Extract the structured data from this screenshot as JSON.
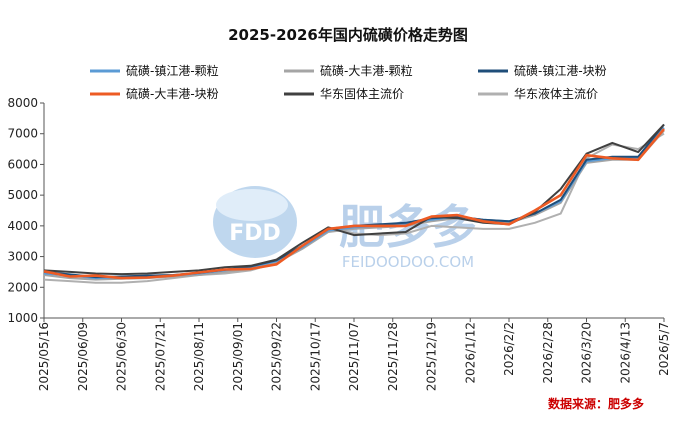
{
  "chart_data": {
    "type": "line",
    "title": "2025-2026年国内硫磺价格走势图",
    "source": "数据来源：肥多多",
    "watermark": {
      "logo_text": "FDD",
      "brand_cn": "肥多多",
      "domain_text": "FEIDOODOO.COM"
    },
    "ylim": [
      1000,
      8000
    ],
    "yticks": [
      1000,
      2000,
      3000,
      4000,
      5000,
      6000,
      7000,
      8000
    ],
    "x_tick_labels": [
      "2025/05/16",
      "2025/06/09",
      "2025/06/30",
      "2025/07/21",
      "2025/08/11",
      "2025/09/01",
      "2025/09/22",
      "2025/10/17",
      "2025/11/07",
      "2025/11/28",
      "2025/12/19",
      "2026/1/12",
      "2026/2/2",
      "2026/2/28",
      "2026/3/20",
      "2026/4/13",
      "2026/5/7"
    ],
    "legend_position": "top",
    "grid": false,
    "series": [
      {
        "name": "硫磺-镇江港-颗粒",
        "color": "#5b9bd5",
        "values": [
          2450,
          2380,
          2300,
          2320,
          2350,
          2380,
          2450,
          2550,
          2650,
          2850,
          3300,
          3850,
          3950,
          4000,
          4050,
          4200,
          4300,
          4200,
          4150,
          4400,
          4800,
          6100,
          6200,
          6200,
          7200
        ]
      },
      {
        "name": "硫磺-大丰港-颗粒",
        "color": "#a5a5a5",
        "values": [
          2400,
          2300,
          2250,
          2280,
          2300,
          2350,
          2400,
          2500,
          2600,
          2800,
          3250,
          3800,
          3900,
          3950,
          4000,
          4150,
          4250,
          4150,
          4100,
          4350,
          4750,
          6050,
          6150,
          6150,
          7100
        ]
      },
      {
        "name": "硫磺-镇江港-块粉",
        "color": "#1f4e79",
        "values": [
          2500,
          2420,
          2330,
          2350,
          2380,
          2400,
          2470,
          2570,
          2680,
          2880,
          3350,
          3900,
          4000,
          4050,
          4100,
          4250,
          4300,
          4200,
          4150,
          4400,
          4850,
          6150,
          6250,
          6250,
          7300
        ]
      },
      {
        "name": "硫磺-大丰港-块粉",
        "color": "#ed5b24",
        "values": [
          2520,
          2350,
          2380,
          2300,
          2320,
          2380,
          2480,
          2580,
          2600,
          2750,
          3350,
          3900,
          4000,
          4000,
          4000,
          4300,
          4350,
          4150,
          4050,
          4500,
          5000,
          6300,
          6200,
          6150,
          7150
        ]
      },
      {
        "name": "华东固体主流价",
        "color": "#404040",
        "values": [
          2550,
          2500,
          2450,
          2430,
          2450,
          2500,
          2550,
          2650,
          2700,
          2900,
          3450,
          3950,
          3700,
          3750,
          3800,
          4300,
          4250,
          4100,
          4050,
          4450,
          5200,
          6350,
          6700,
          6400,
          7300
        ]
      },
      {
        "name": "华东液体主流价",
        "color": "#b0b0b0",
        "values": [
          2250,
          2200,
          2150,
          2150,
          2200,
          2300,
          2400,
          2450,
          2550,
          2800,
          3300,
          3950,
          3750,
          3700,
          3750,
          4000,
          3950,
          3900,
          3900,
          4100,
          4400,
          6200,
          6650,
          6500,
          7000
        ]
      }
    ]
  }
}
